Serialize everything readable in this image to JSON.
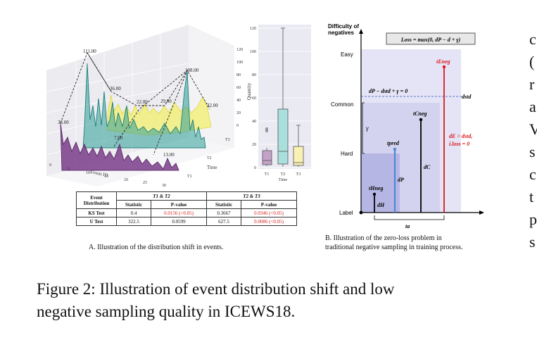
{
  "panelA": {
    "chart3d": {
      "x_axis_label": "Event ID",
      "x_ticks": [
        "0",
        "5",
        "10",
        "15",
        "20",
        "25",
        "30"
      ],
      "y_axis_label": "Time",
      "y_ticks": [
        "T1",
        "T2",
        "T3"
      ],
      "z_axis_label": "Quantity",
      "z_ticks": [
        "0",
        "20",
        "40",
        "60",
        "80",
        "100",
        "120"
      ],
      "peak_labels": [
        "111.00",
        "36.00",
        "22.00",
        "29.00",
        "108.00",
        "32.00",
        "36.00",
        "7.00",
        "13.00"
      ]
    },
    "boxplot": {
      "y_ticks": [
        "0",
        "20",
        "40",
        "60",
        "80",
        "100",
        "120"
      ],
      "x_ticks": [
        "T1",
        "T2",
        "T3"
      ],
      "x_label": "Time"
    },
    "table": {
      "col1_header": "Event Distribution",
      "group1": "T1 & T2",
      "group2": "T2 & T3",
      "sub_statistic": "Statistic",
      "sub_pvalue": "P-value",
      "rows": [
        {
          "name": "KS Test",
          "s1": "0.4",
          "p1": "0.0156 (<0.05)",
          "s2": "0.3667",
          "p2": "0.0346 (<0.05)"
        },
        {
          "name": "U Test",
          "s1": "322.5",
          "p1": "0.0599",
          "s2": "627.5",
          "p2": "0.0086 (<0.05)"
        }
      ]
    },
    "caption": "A. Illustration of the distribution shift in events."
  },
  "panelB": {
    "y_axis_title_1": "Difficulty of",
    "y_axis_title_2": "negatives",
    "loss_box": "Loss = max(0, dP − d + γ)",
    "levels": [
      "Easy",
      "Common",
      "Hard",
      "Label"
    ],
    "threshold_eq": "dP − dstd + γ = 0",
    "dstd": "dstd",
    "gamma": "γ",
    "t_pred": "tpred",
    "t_neg_h": "tHneg",
    "t_neg_c": "tCneg",
    "t_neg_e": "tEneg",
    "d_h": "dH",
    "d_p": "dP",
    "d_c": "dC",
    "cond_1": "dE > dstd,",
    "cond_2": "i.loss = 0",
    "t_a": "ta",
    "caption_1": "B. Illustration of the zero-loss problem in",
    "caption_2": "traditional negative sampling in training process."
  },
  "figure_caption_1": "Figure 2: Illustration of event distribution shift and low",
  "figure_caption_2": "negative sampling quality in ICEWS18.",
  "right_edge_letters": [
    "c",
    "(",
    "r",
    "a",
    "V",
    "s",
    "c",
    "t",
    "p",
    "s"
  ],
  "colors": {
    "teal": "#2e9e97",
    "yellow": "#f3ef6d",
    "purple": "#7a3d8a",
    "box_purple": "#c3a2c9",
    "box_teal": "#a9dfdc",
    "box_yellow": "#f9f1b3",
    "red": "#e01818",
    "blue": "#4f86d6",
    "band_light": "#e4e4f6",
    "band_mid": "#d3d3ef",
    "band_dark": "#b6b6e4"
  }
}
